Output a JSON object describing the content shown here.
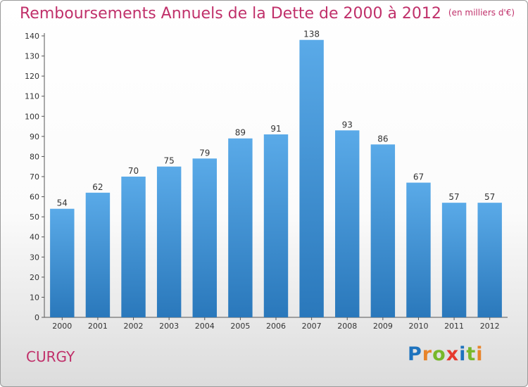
{
  "title": "Remboursements Annuels de la Dette de 2000 à 2012",
  "subtitle": "(en milliers d'€)",
  "city": "CURGY",
  "logo": {
    "text": "Proxiti",
    "letters": [
      "P",
      "r",
      "o",
      "x",
      "i",
      "t",
      "i"
    ]
  },
  "colors": {
    "title": "#c0306a",
    "bar_top": "#5aaae8",
    "bar_bottom": "#2a78bb"
  },
  "chart_data": {
    "type": "bar",
    "categories": [
      "2000",
      "2001",
      "2002",
      "2003",
      "2004",
      "2005",
      "2006",
      "2007",
      "2008",
      "2009",
      "2010",
      "2011",
      "2012"
    ],
    "values": [
      54,
      62,
      70,
      75,
      79,
      89,
      91,
      138,
      93,
      86,
      67,
      57,
      57
    ],
    "ylim": [
      0,
      140
    ],
    "yticks": [
      0,
      10,
      20,
      30,
      40,
      50,
      60,
      70,
      80,
      90,
      100,
      110,
      120,
      130,
      140
    ],
    "grid": false,
    "legend": "none"
  }
}
